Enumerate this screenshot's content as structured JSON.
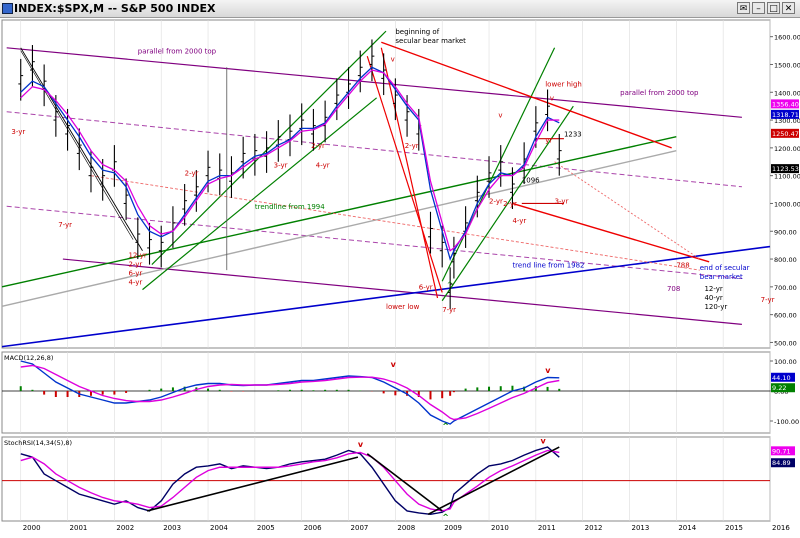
{
  "window": {
    "title": "INDEX:$SPX,M -- S&P 500 INDEX",
    "buttons": [
      "✉",
      "–",
      "□",
      "✕"
    ]
  },
  "chart_data": [
    {
      "type": "line",
      "panel": "price",
      "title": "INDEX:$SPX,M -- S&P 500 INDEX",
      "x_unit": "year",
      "xlim": [
        1999.6,
        2016.0
      ],
      "ylim": [
        480,
        1660
      ],
      "y_ticks": [
        500,
        600,
        700,
        800,
        900,
        1000,
        1100,
        1200,
        1300,
        1400,
        1500,
        1600
      ],
      "x_ticks": [
        "2000",
        "2001",
        "2002",
        "2003",
        "2004",
        "2005",
        "2006",
        "2007",
        "2008",
        "2009",
        "2010",
        "2011",
        "2012",
        "2013",
        "2014",
        "2015",
        "2016"
      ],
      "series": [
        {
          "kind": "ohlc",
          "color": "#000000",
          "x": [
            2000.0,
            2000.25,
            2000.5,
            2000.75,
            2001.0,
            2001.25,
            2001.5,
            2001.75,
            2002.0,
            2002.25,
            2002.5,
            2002.75,
            2003.0,
            2003.25,
            2003.5,
            2003.75,
            2004.0,
            2004.25,
            2004.5,
            2004.75,
            2005.0,
            2005.25,
            2005.5,
            2005.75,
            2006.0,
            2006.25,
            2006.5,
            2006.75,
            2007.0,
            2007.25,
            2007.5,
            2007.75,
            2008.0,
            2008.25,
            2008.5,
            2008.75,
            2009.0,
            2009.17,
            2009.25,
            2009.5,
            2009.75,
            2010.0,
            2010.25,
            2010.5,
            2010.75,
            2011.0,
            2011.25,
            2011.5
          ],
          "values": [
            1450,
            1500,
            1430,
            1320,
            1270,
            1200,
            1120,
            1090,
            1140,
            1020,
            880,
            860,
            850,
            920,
            1000,
            1050,
            1120,
            1110,
            1100,
            1170,
            1180,
            1190,
            1230,
            1250,
            1290,
            1270,
            1300,
            1380,
            1420,
            1480,
            1520,
            1470,
            1380,
            1320,
            1270,
            900,
            850,
            700,
            810,
            920,
            1030,
            1100,
            1140,
            1060,
            1150,
            1280,
            1340,
            1180
          ]
        },
        {
          "name": "ma-blue",
          "color": "#0033cc",
          "values": [
            1400,
            1440,
            1420,
            1360,
            1300,
            1240,
            1170,
            1120,
            1110,
            1060,
            960,
            900,
            880,
            900,
            960,
            1020,
            1080,
            1100,
            1100,
            1140,
            1170,
            1180,
            1210,
            1230,
            1270,
            1270,
            1290,
            1350,
            1400,
            1450,
            1490,
            1470,
            1410,
            1350,
            1300,
            1050,
            900,
            800,
            830,
            900,
            1000,
            1070,
            1110,
            1100,
            1140,
            1240,
            1310,
            1290
          ]
        },
        {
          "name": "ma-magenta",
          "color": "#dd00dd",
          "values": [
            1380,
            1420,
            1410,
            1370,
            1320,
            1260,
            1190,
            1140,
            1120,
            1080,
            990,
            920,
            890,
            900,
            950,
            1010,
            1070,
            1090,
            1100,
            1130,
            1160,
            1175,
            1200,
            1225,
            1260,
            1265,
            1285,
            1340,
            1390,
            1440,
            1480,
            1470,
            1420,
            1360,
            1310,
            1080,
            930,
            830,
            840,
            890,
            980,
            1050,
            1100,
            1100,
            1130,
            1220,
            1300,
            1300
          ]
        }
      ],
      "current_labels": [
        "1356.40",
        "1318.71",
        "1250.47",
        "1123.53"
      ],
      "annotations": [
        "parallel from 2000 top",
        "beginning of\nsecular bear market",
        "lower high",
        "parallel from 2000 top",
        "1233",
        "1096",
        "trendline from 1994",
        "trend line from 1982",
        "end of secular\nbear market",
        "12-yr\n40-yr\n120-yr",
        "708",
        "788",
        "7-yr",
        "lower low",
        "7-yr",
        "6-yr",
        "3-yr",
        "7-yr",
        "12-yr\n2-yr\n6-yr\n4-yr",
        "2-yr",
        "2-yr",
        "3-yr",
        "4-yr",
        "2-yr",
        "2-yr",
        "4-yr",
        "3-yr",
        "yr",
        "2-yr",
        "v",
        "v",
        "v",
        "^"
      ]
    },
    {
      "type": "line",
      "panel": "macd",
      "title": "MACD(12,26,8)",
      "ylim": [
        -140,
        130
      ],
      "y_ticks": [
        -100,
        0,
        100
      ],
      "current_labels": [
        "44.10",
        "9.22"
      ],
      "series": [
        {
          "name": "MACD",
          "color": "#0033cc",
          "values": [
            100,
            90,
            60,
            30,
            10,
            -10,
            -20,
            -30,
            -40,
            -40,
            -35,
            -30,
            -20,
            -5,
            10,
            20,
            25,
            25,
            20,
            18,
            20,
            20,
            25,
            30,
            35,
            35,
            40,
            45,
            50,
            48,
            45,
            30,
            10,
            -10,
            -40,
            -80,
            -100,
            -110,
            -100,
            -80,
            -60,
            -40,
            -20,
            0,
            10,
            30,
            45,
            44
          ]
        },
        {
          "name": "Signal",
          "color": "#dd00dd",
          "values": [
            80,
            85,
            75,
            55,
            35,
            15,
            0,
            -15,
            -25,
            -32,
            -35,
            -35,
            -30,
            -20,
            -8,
            5,
            15,
            20,
            22,
            20,
            20,
            20,
            22,
            25,
            30,
            32,
            35,
            40,
            45,
            46,
            46,
            40,
            28,
            10,
            -15,
            -45,
            -70,
            -90,
            -95,
            -90,
            -75,
            -58,
            -40,
            -22,
            -8,
            10,
            28,
            35
          ]
        }
      ],
      "annotations": [
        "v",
        "v",
        "^"
      ]
    },
    {
      "type": "line",
      "panel": "stochrsi",
      "title": "StochRSI(14,34(5),8)",
      "ylim": [
        -10,
        115
      ],
      "current_labels": [
        "90.71",
        "84.89"
      ],
      "series": [
        {
          "name": "StochRSI",
          "color": "#000066",
          "values": [
            90,
            85,
            60,
            50,
            40,
            30,
            25,
            20,
            15,
            20,
            10,
            5,
            20,
            45,
            60,
            70,
            72,
            75,
            68,
            72,
            70,
            68,
            70,
            75,
            78,
            80,
            82,
            88,
            95,
            90,
            70,
            45,
            20,
            5,
            2,
            0,
            3,
            10,
            30,
            45,
            60,
            72,
            75,
            80,
            88,
            95,
            100,
            85
          ]
        },
        {
          "name": "Signal",
          "color": "#dd00dd",
          "values": [
            80,
            85,
            75,
            60,
            50,
            40,
            32,
            25,
            20,
            18,
            15,
            10,
            12,
            25,
            40,
            55,
            65,
            70,
            70,
            70,
            70,
            70,
            70,
            72,
            75,
            78,
            80,
            84,
            90,
            92,
            85,
            70,
            50,
            30,
            15,
            8,
            5,
            8,
            18,
            30,
            42,
            55,
            65,
            72,
            80,
            88,
            95,
            92
          ]
        }
      ],
      "annotations": [
        "v",
        "v",
        "^"
      ]
    }
  ]
}
